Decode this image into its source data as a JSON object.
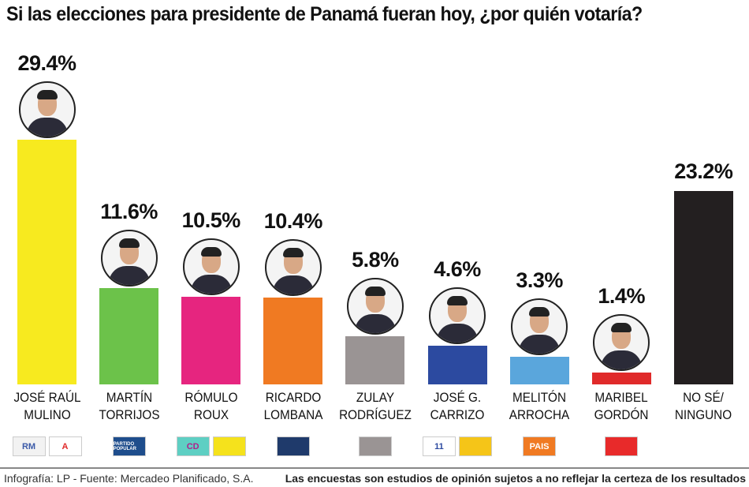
{
  "chart_data": {
    "type": "bar",
    "title": "Si las elecciones para presidente de Panamá fueran hoy, ¿por quién votaría?",
    "categories": [
      "JOSÉ RAÚL MULINO",
      "MARTÍN TORRIJOS",
      "RÓMULO ROUX",
      "RICARDO LOMBANA",
      "ZULAY RODRÍGUEZ",
      "JOSÉ G. CARRIZO",
      "MELITÓN ARROCHA",
      "MARIBEL GORDÓN",
      "NO SÉ/ NINGUNO"
    ],
    "name_lines": [
      [
        "JOSÉ RAÚL",
        "MULINO"
      ],
      [
        "MARTÍN",
        "TORRIJOS"
      ],
      [
        "RÓMULO",
        "ROUX"
      ],
      [
        "RICARDO",
        "LOMBANA"
      ],
      [
        "ZULAY",
        "RODRÍGUEZ"
      ],
      [
        "JOSÉ G.",
        "CARRIZO"
      ],
      [
        "MELITÓN",
        "ARROCHA"
      ],
      [
        "MARIBEL",
        "GORDÓN"
      ],
      [
        "NO SÉ/",
        "NINGUNO"
      ]
    ],
    "values": [
      29.4,
      11.6,
      10.5,
      10.4,
      5.8,
      4.6,
      3.3,
      1.4,
      23.2
    ],
    "labels": [
      "29.4%",
      "11.6%",
      "10.5%",
      "10.4%",
      "5.8%",
      "4.6%",
      "3.3%",
      "1.4%",
      "23.2%"
    ],
    "colors": [
      "#f7ea1f",
      "#6cc24a",
      "#e6257f",
      "#f07a22",
      "#9a9494",
      "#2c4aa0",
      "#5aa6dc",
      "#e02a2a",
      "#231f20"
    ],
    "has_photo": [
      true,
      true,
      true,
      true,
      true,
      true,
      true,
      true,
      false
    ],
    "unit": "%",
    "ylim": [
      0,
      30
    ],
    "grid": false
  },
  "party_logos": [
    [
      {
        "text": "RM",
        "bg": "#f2f2f2",
        "fg": "#3b5aa8"
      },
      {
        "text": "A",
        "bg": "#fff",
        "fg": "#e02a2a"
      }
    ],
    [
      {
        "text": "PARTIDO POPULAR",
        "bg": "#1e4d8c",
        "fg": "#fff"
      }
    ],
    [
      {
        "text": "CD",
        "bg": "#5ecfc3",
        "fg": "#b0208a"
      },
      {
        "text": "",
        "bg": "#f5e21c",
        "fg": "#000"
      }
    ],
    [
      {
        "text": "",
        "bg": "#1f3a6b",
        "fg": "#f07a22"
      }
    ],
    [
      {
        "text": "",
        "bg": "#9a9494",
        "fg": "#000"
      }
    ],
    [
      {
        "text": "11",
        "bg": "#ffffff",
        "fg": "#2c4aa0"
      },
      {
        "text": "",
        "bg": "#f5c518",
        "fg": "#e02a2a"
      }
    ],
    [
      {
        "text": "PAIS",
        "bg": "#f07a22",
        "fg": "#fff"
      }
    ],
    [
      {
        "text": "",
        "bg": "#e82a2a",
        "fg": "#000"
      }
    ],
    []
  ],
  "footer": {
    "credit": "Infografía: LP - Fuente: Mercadeo Planificado, S.A.",
    "disclaimer": "Las encuestas son estudios de opinión sujetos a no reflejar la certeza de los resultados"
  }
}
